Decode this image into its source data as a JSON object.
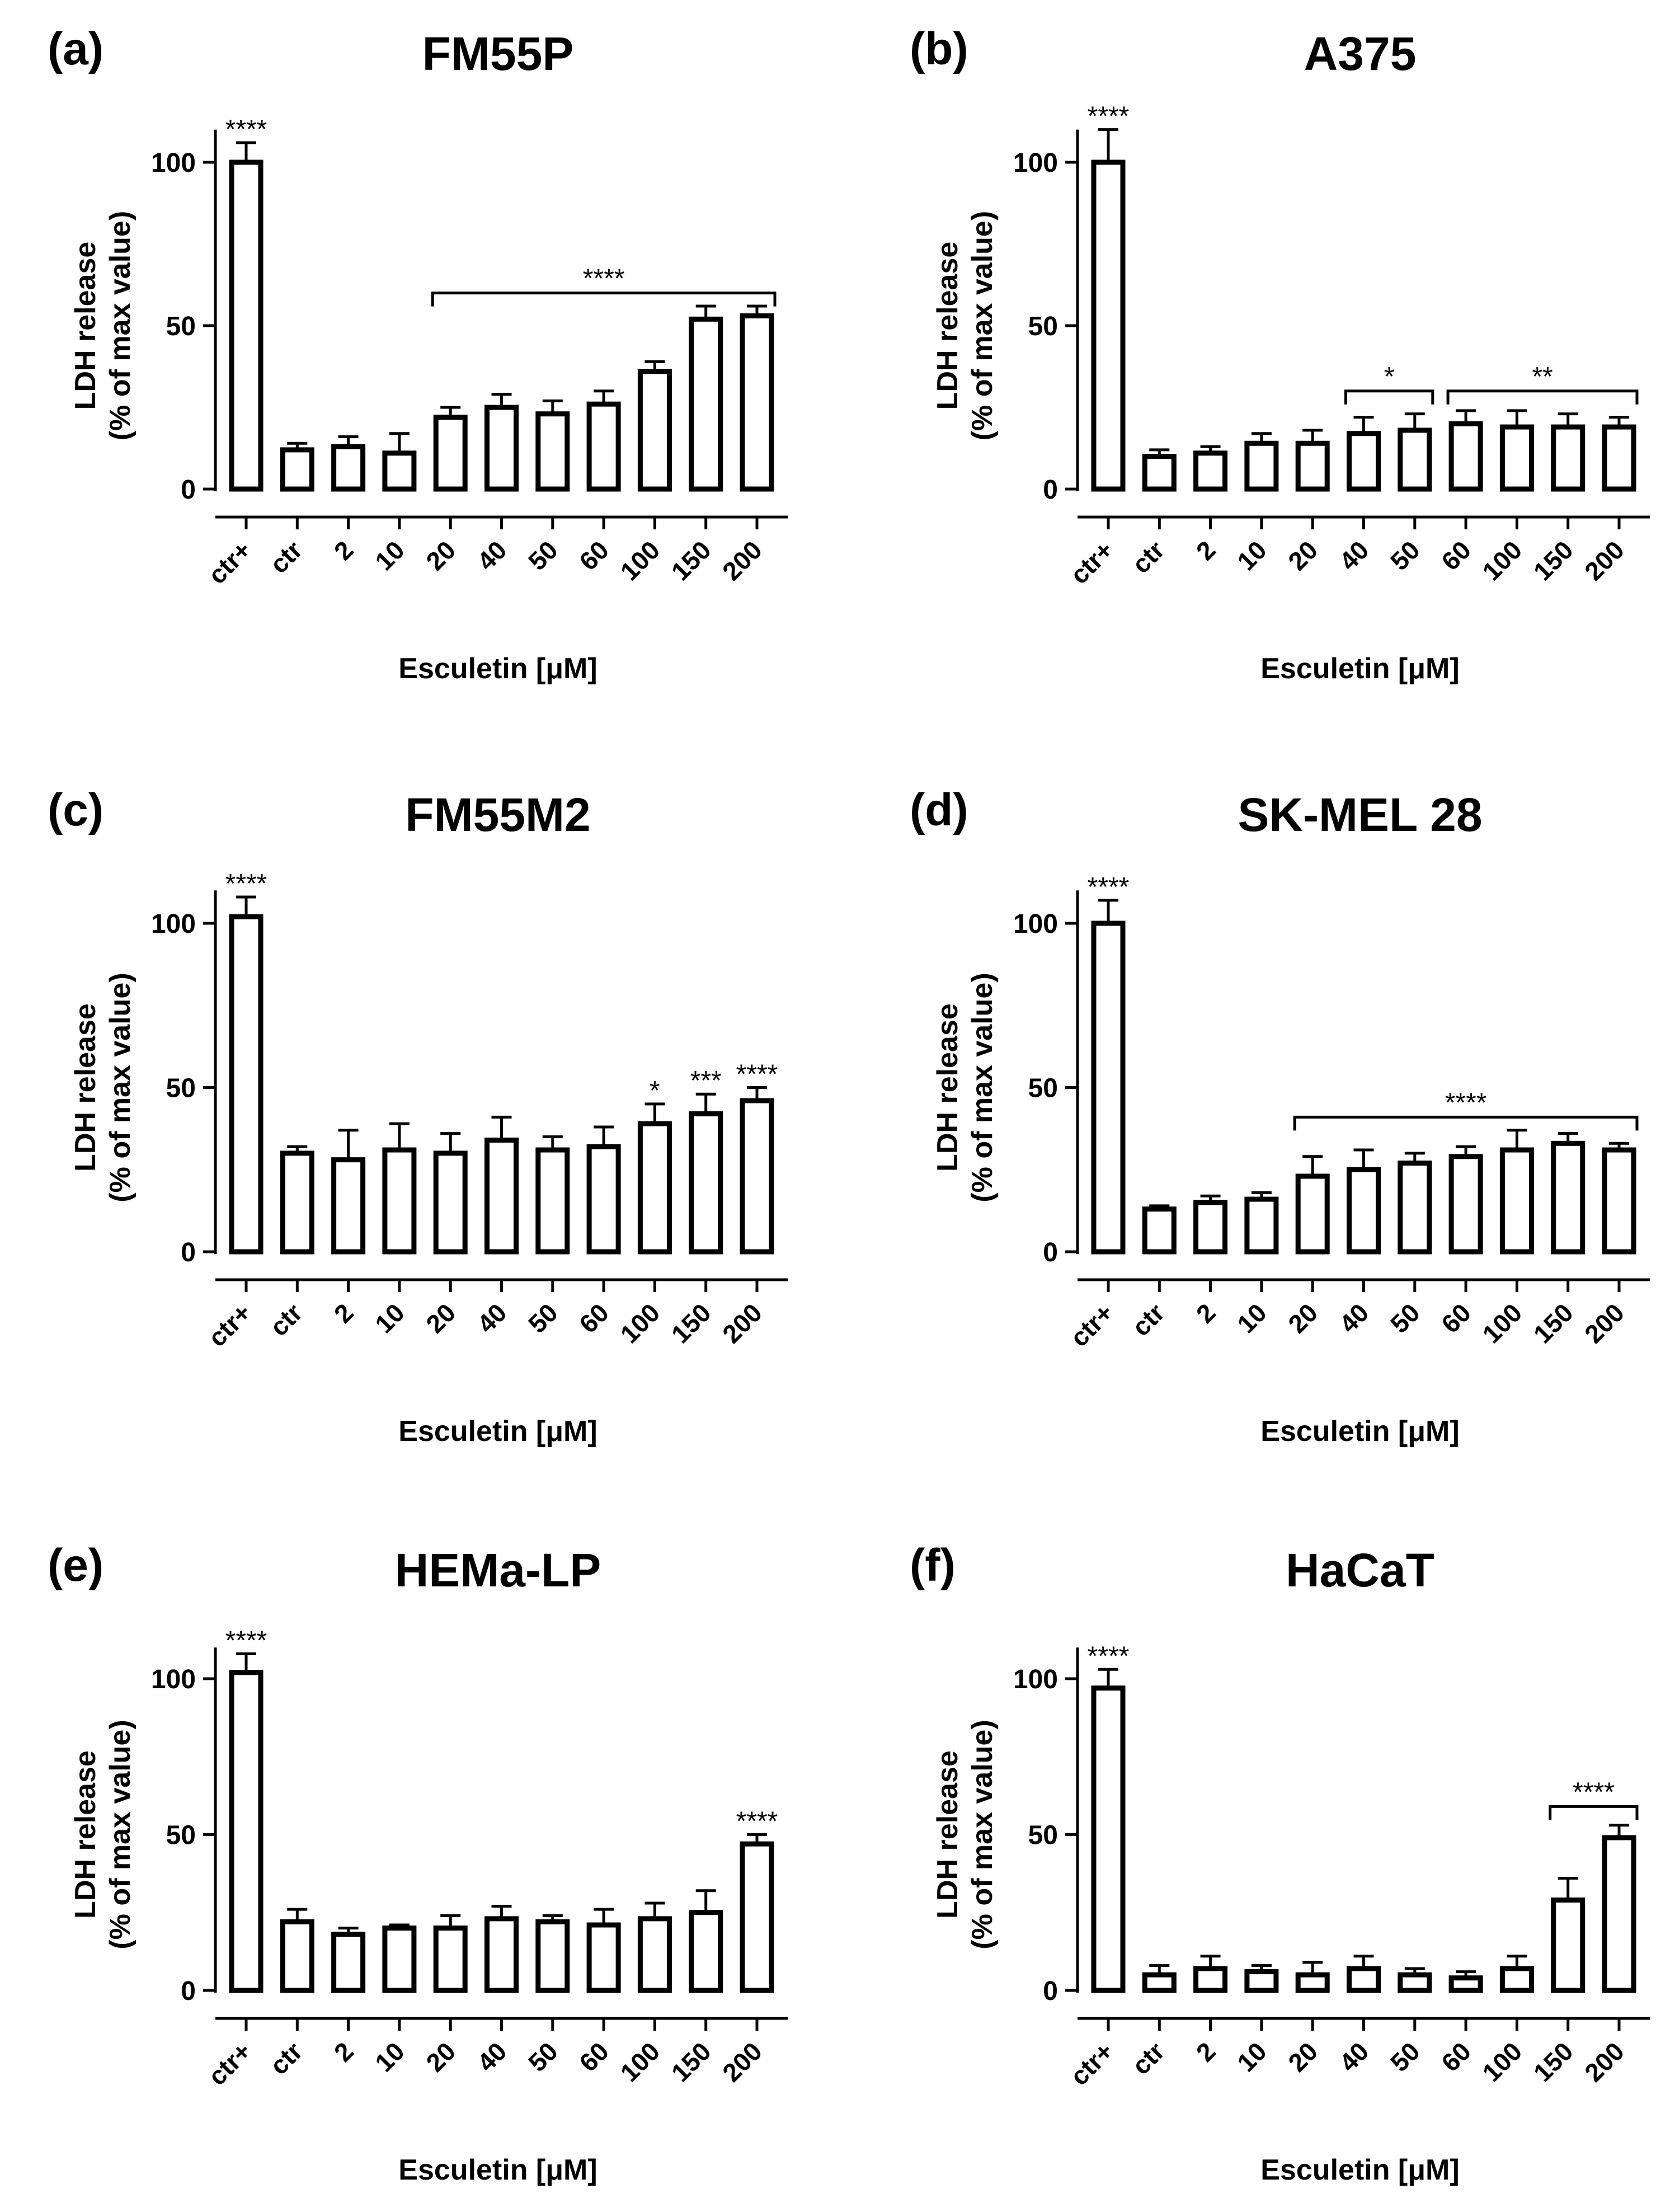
{
  "figure": {
    "xlabel": "Esculetin [μM]",
    "ylabel_line1": "LDH release",
    "ylabel_line2": "(% of max value)"
  },
  "chart_data": [
    {
      "panel": "(a)",
      "title": "FM55P",
      "type": "bar",
      "categories": [
        "ctr+",
        "ctr",
        "2",
        "10",
        "20",
        "40",
        "50",
        "60",
        "100",
        "150",
        "200"
      ],
      "values": [
        100,
        12,
        13,
        11,
        22,
        25,
        23,
        26,
        36,
        52,
        53
      ],
      "errors": [
        6,
        2,
        3,
        6,
        3,
        4,
        4,
        4,
        3,
        4,
        3
      ],
      "yticks": [
        0,
        50,
        100
      ],
      "ylim": [
        0,
        110
      ],
      "xlabel": "Esculetin [μM]",
      "ylabel": "LDH release (% of max value)",
      "stars": [
        {
          "index": 0,
          "text": "****"
        }
      ],
      "brackets": [
        {
          "from": 4,
          "to": 10,
          "y": 60,
          "text": "****"
        }
      ]
    },
    {
      "panel": "(b)",
      "title": "A375",
      "type": "bar",
      "categories": [
        "ctr+",
        "ctr",
        "2",
        "10",
        "20",
        "40",
        "50",
        "60",
        "100",
        "150",
        "200"
      ],
      "values": [
        100,
        10,
        11,
        14,
        14,
        17,
        18,
        20,
        19,
        19,
        19
      ],
      "errors": [
        10,
        2,
        2,
        3,
        4,
        5,
        5,
        4,
        5,
        4,
        3
      ],
      "yticks": [
        0,
        50,
        100
      ],
      "ylim": [
        0,
        110
      ],
      "xlabel": "Esculetin [μM]",
      "ylabel": "LDH release (% of max value)",
      "stars": [
        {
          "index": 0,
          "text": "****"
        }
      ],
      "brackets": [
        {
          "from": 5,
          "to": 6,
          "y": 30,
          "text": "*"
        },
        {
          "from": 7,
          "to": 10,
          "y": 30,
          "text": "**"
        }
      ]
    },
    {
      "panel": "(c)",
      "title": "FM55M2",
      "type": "bar",
      "categories": [
        "ctr+",
        "ctr",
        "2",
        "10",
        "20",
        "40",
        "50",
        "60",
        "100",
        "150",
        "200"
      ],
      "values": [
        102,
        30,
        28,
        31,
        30,
        34,
        31,
        32,
        39,
        42,
        46
      ],
      "errors": [
        6,
        2,
        9,
        8,
        6,
        7,
        4,
        6,
        6,
        6,
        4
      ],
      "yticks": [
        0,
        50,
        100
      ],
      "ylim": [
        0,
        110
      ],
      "xlabel": "Esculetin [μM]",
      "ylabel": "LDH release (% of max value)",
      "stars": [
        {
          "index": 0,
          "text": "****"
        },
        {
          "index": 8,
          "text": "*"
        },
        {
          "index": 9,
          "text": "***"
        },
        {
          "index": 10,
          "text": "****"
        }
      ],
      "brackets": []
    },
    {
      "panel": "(d)",
      "title": "SK-MEL 28",
      "type": "bar",
      "categories": [
        "ctr+",
        "ctr",
        "2",
        "10",
        "20",
        "40",
        "50",
        "60",
        "100",
        "150",
        "200"
      ],
      "values": [
        100,
        13,
        15,
        16,
        23,
        25,
        27,
        29,
        31,
        33,
        31
      ],
      "errors": [
        7,
        1,
        2,
        2,
        6,
        6,
        3,
        3,
        6,
        3,
        2
      ],
      "yticks": [
        0,
        50,
        100
      ],
      "ylim": [
        0,
        110
      ],
      "xlabel": "Esculetin [μM]",
      "ylabel": "LDH release (% of max value)",
      "stars": [
        {
          "index": 0,
          "text": "****"
        }
      ],
      "brackets": [
        {
          "from": 4,
          "to": 10,
          "y": 41,
          "text": "****"
        }
      ]
    },
    {
      "panel": "(e)",
      "title": "HEMa-LP",
      "type": "bar",
      "categories": [
        "ctr+",
        "ctr",
        "2",
        "10",
        "20",
        "40",
        "50",
        "60",
        "100",
        "150",
        "200"
      ],
      "values": [
        102,
        22,
        18,
        20,
        20,
        23,
        22,
        21,
        23,
        25,
        47
      ],
      "errors": [
        6,
        4,
        2,
        1,
        4,
        4,
        2,
        5,
        5,
        7,
        3
      ],
      "yticks": [
        0,
        50,
        100
      ],
      "ylim": [
        0,
        110
      ],
      "xlabel": "Esculetin [μM]",
      "ylabel": "LDH release (% of max value)",
      "stars": [
        {
          "index": 0,
          "text": "****"
        },
        {
          "index": 10,
          "text": "****"
        }
      ],
      "brackets": []
    },
    {
      "panel": "(f)",
      "title": "HaCaT",
      "type": "bar",
      "categories": [
        "ctr+",
        "ctr",
        "2",
        "10",
        "20",
        "40",
        "50",
        "60",
        "100",
        "150",
        "200"
      ],
      "values": [
        97,
        5,
        7,
        6,
        5,
        7,
        5,
        4,
        7,
        29,
        49
      ],
      "errors": [
        6,
        3,
        4,
        2,
        4,
        4,
        2,
        2,
        4,
        7,
        4
      ],
      "yticks": [
        0,
        50,
        100
      ],
      "ylim": [
        0,
        110
      ],
      "xlabel": "Esculetin [μM]",
      "ylabel": "LDH release (% of max value)",
      "stars": [
        {
          "index": 0,
          "text": "****"
        }
      ],
      "brackets": [
        {
          "from": 9,
          "to": 10,
          "y": 59,
          "text": "****"
        }
      ]
    }
  ]
}
